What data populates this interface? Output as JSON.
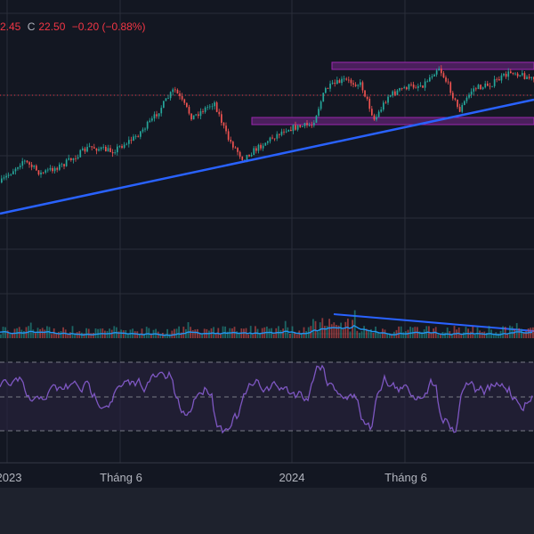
{
  "legend": {
    "open_value": "2.45",
    "close_label": "C",
    "close_value": "22.50",
    "change": "−0.20 (−0.88%)"
  },
  "x_axis_labels": [
    "2023",
    "Tháng 6",
    "2024",
    "Tháng 6"
  ],
  "colors": {
    "background": "#131722",
    "grid": "#2a2e39",
    "candle_up": "#26a69a",
    "candle_down": "#ef5350",
    "trendline": "#2962ff",
    "zone_border": "#9c27b0",
    "zone_fill": "#4a1f5c",
    "rsi_line": "#7e57c2",
    "rsi_band": "#2a2340",
    "price_line": "#f23645",
    "volume_ma": "#2196f3"
  },
  "chart_data": [
    {
      "type": "candlestick",
      "title": "",
      "x_labels": [
        "2023",
        "Tháng 6",
        "2024",
        "Tháng 6"
      ],
      "last_close": 22.5,
      "change": -0.2,
      "change_pct": -0.88,
      "drawings": [
        "ascending trendline",
        "two horizontal resistance/support zones",
        "dotted last-price line"
      ],
      "grid": true
    },
    {
      "type": "bar",
      "title": "",
      "series": [
        {
          "values": []
        }
      ]
    },
    {
      "type": "line",
      "title": "",
      "bands": [
        70,
        50,
        30
      ]
    }
  ]
}
